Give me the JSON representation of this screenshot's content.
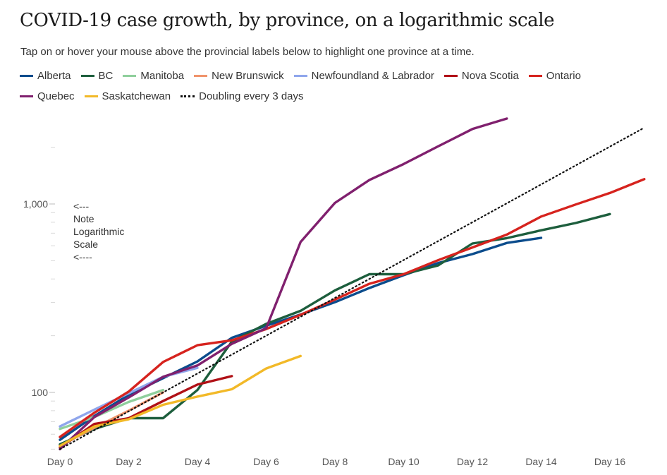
{
  "header": {
    "title": "COVID-19 case growth, by province, on a logarithmic scale",
    "subtitle": "Tap on or hover your mouse above the provincial labels below to highlight one province at a time."
  },
  "note": {
    "lines": [
      "<---",
      "Note",
      "Logarithmic",
      "Scale",
      "<----"
    ]
  },
  "chart_data": {
    "type": "line",
    "title": "COVID-19 case growth, by province, on a logarithmic scale",
    "xlabel": "",
    "ylabel": "",
    "y_scale": "log",
    "xlim": [
      0,
      17
    ],
    "ylim": [
      42,
      3000
    ],
    "x_ticks": [
      0,
      2,
      4,
      6,
      8,
      10,
      12,
      14,
      16
    ],
    "x_tick_labels": [
      "Day 0",
      "Day 2",
      "Day 4",
      "Day 6",
      "Day 8",
      "Day 10",
      "Day 12",
      "Day 14",
      "Day 16"
    ],
    "y_ticks": [
      100,
      1000
    ],
    "y_tick_labels": [
      "100",
      "1,000"
    ],
    "legend_position": "top",
    "series": [
      {
        "name": "Alberta",
        "color": "#0b4c8c",
        "style": "solid",
        "x": [
          0,
          1,
          2,
          3,
          4,
          5,
          6,
          7,
          8,
          9,
          10,
          11,
          12,
          13,
          14
        ],
        "y": [
          56,
          75,
          97,
          119,
          146,
          195,
          226,
          259,
          301,
          358,
          419,
          486,
          542,
          621,
          661
        ]
      },
      {
        "name": "BC",
        "color": "#1d5e3d",
        "style": "solid",
        "x": [
          0,
          1,
          2,
          3,
          4,
          5,
          6,
          7,
          8,
          9,
          10,
          11,
          12,
          13,
          14,
          15,
          16
        ],
        "y": [
          53,
          64,
          73,
          73,
          103,
          186,
          231,
          271,
          348,
          424,
          424,
          472,
          617,
          659,
          725,
          792,
          884
        ]
      },
      {
        "name": "Manitoba",
        "color": "#8fcf9c",
        "style": "solid",
        "x": [
          0,
          1,
          2,
          3
        ],
        "y": [
          64,
          74,
          89,
          103
        ]
      },
      {
        "name": "New Brunswick",
        "color": "#f0936b",
        "style": "solid",
        "x": [
          0,
          1,
          2,
          3
        ],
        "y": [
          52,
          65,
          80,
          100
        ]
      },
      {
        "name": "Newfoundland & Labrador",
        "color": "#8fa6ec",
        "style": "solid",
        "x": [
          0,
          1,
          2,
          3,
          4
        ],
        "y": [
          66,
          81,
          99,
          121,
          135
        ]
      },
      {
        "name": "Nova Scotia",
        "color": "#b01016",
        "style": "solid",
        "x": [
          0,
          1,
          2,
          3,
          4,
          5
        ],
        "y": [
          51,
          68,
          73,
          90,
          110,
          122
        ]
      },
      {
        "name": "Ontario",
        "color": "#d6231e",
        "style": "solid",
        "x": [
          0,
          1,
          2,
          3,
          4,
          5,
          6,
          7,
          8,
          9,
          10,
          11,
          12,
          13,
          14,
          15,
          16,
          17
        ],
        "y": [
          58,
          78,
          101,
          145,
          178,
          189,
          217,
          258,
          311,
          377,
          424,
          503,
          588,
          688,
          858,
          993,
          1144,
          1355
        ]
      },
      {
        "name": "Quebec",
        "color": "#80206e",
        "style": "solid",
        "x": [
          0,
          1,
          2,
          3,
          4,
          5,
          6,
          7,
          8,
          9,
          10,
          11,
          12,
          13
        ],
        "y": [
          50,
          74,
          94,
          121,
          139,
          181,
          219,
          628,
          1013,
          1339,
          1629,
          2021,
          2498,
          2840
        ]
      },
      {
        "name": "Saskatchewan",
        "color": "#f2b928",
        "style": "solid",
        "x": [
          0,
          1,
          2,
          3,
          4,
          5,
          6,
          7
        ],
        "y": [
          52,
          66,
          72,
          86,
          95,
          104,
          134,
          156
        ]
      },
      {
        "name": "Doubling every 3 days",
        "color": "#111111",
        "style": "dotted",
        "x": [
          0,
          17
        ],
        "y": [
          50,
          2540
        ]
      }
    ]
  }
}
